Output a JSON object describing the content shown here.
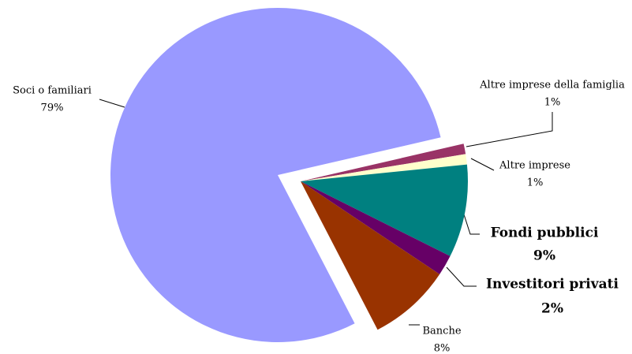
{
  "chart_data": {
    "type": "pie",
    "categories": [
      "Soci o familiari",
      "Altre imprese della famiglia",
      "Altre imprese",
      "Fondi pubblici",
      "Investitori privati",
      "Banche"
    ],
    "values": [
      79,
      1,
      1,
      9,
      2,
      8
    ],
    "value_labels": [
      "79%",
      "1%",
      "1%",
      "9%",
      "2%",
      "8%"
    ],
    "colors": [
      "#9999ff",
      "#993366",
      "#ffffcc",
      "#008080",
      "#660066",
      "#993300"
    ]
  }
}
